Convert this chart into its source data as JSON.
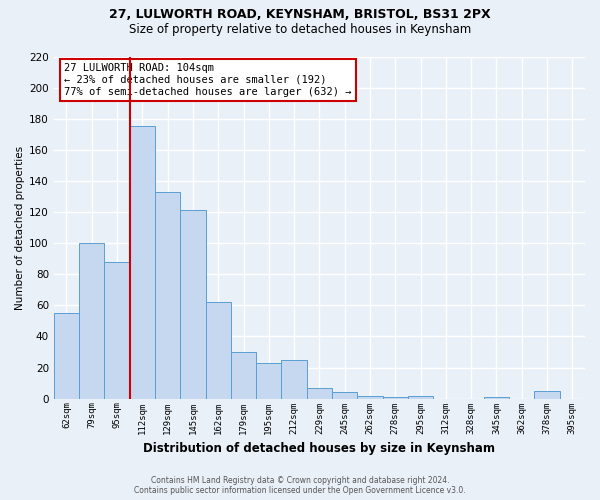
{
  "title1": "27, LULWORTH ROAD, KEYNSHAM, BRISTOL, BS31 2PX",
  "title2": "Size of property relative to detached houses in Keynsham",
  "xlabel": "Distribution of detached houses by size in Keynsham",
  "ylabel": "Number of detached properties",
  "footer1": "Contains HM Land Registry data © Crown copyright and database right 2024.",
  "footer2": "Contains public sector information licensed under the Open Government Licence v3.0.",
  "categories": [
    "62sqm",
    "79sqm",
    "95sqm",
    "112sqm",
    "129sqm",
    "145sqm",
    "162sqm",
    "179sqm",
    "195sqm",
    "212sqm",
    "229sqm",
    "245sqm",
    "262sqm",
    "278sqm",
    "295sqm",
    "312sqm",
    "328sqm",
    "345sqm",
    "362sqm",
    "378sqm",
    "395sqm"
  ],
  "values": [
    55,
    100,
    88,
    175,
    133,
    121,
    62,
    30,
    23,
    25,
    7,
    4,
    2,
    1,
    2,
    0,
    0,
    1,
    0,
    5,
    0
  ],
  "bar_color": "#c5d8f0",
  "bar_edge_color": "#5a9fd4",
  "vline_x": 2.5,
  "vline_color": "#cc0000",
  "annotation_text": "27 LULWORTH ROAD: 104sqm\n← 23% of detached houses are smaller (192)\n77% of semi-detached houses are larger (632) →",
  "annotation_box_color": "#ffffff",
  "annotation_box_edge_color": "#cc0000",
  "ylim": [
    0,
    220
  ],
  "yticks": [
    0,
    20,
    40,
    60,
    80,
    100,
    120,
    140,
    160,
    180,
    200,
    220
  ],
  "bg_color": "#eaf0f8",
  "grid_color": "#ffffff",
  "ann_fontsize": 7.5,
  "title1_fontsize": 9,
  "title2_fontsize": 8.5,
  "xlabel_fontsize": 8.5,
  "ylabel_fontsize": 7.5,
  "xtick_fontsize": 6.5,
  "ytick_fontsize": 7.5,
  "footer_fontsize": 5.5
}
